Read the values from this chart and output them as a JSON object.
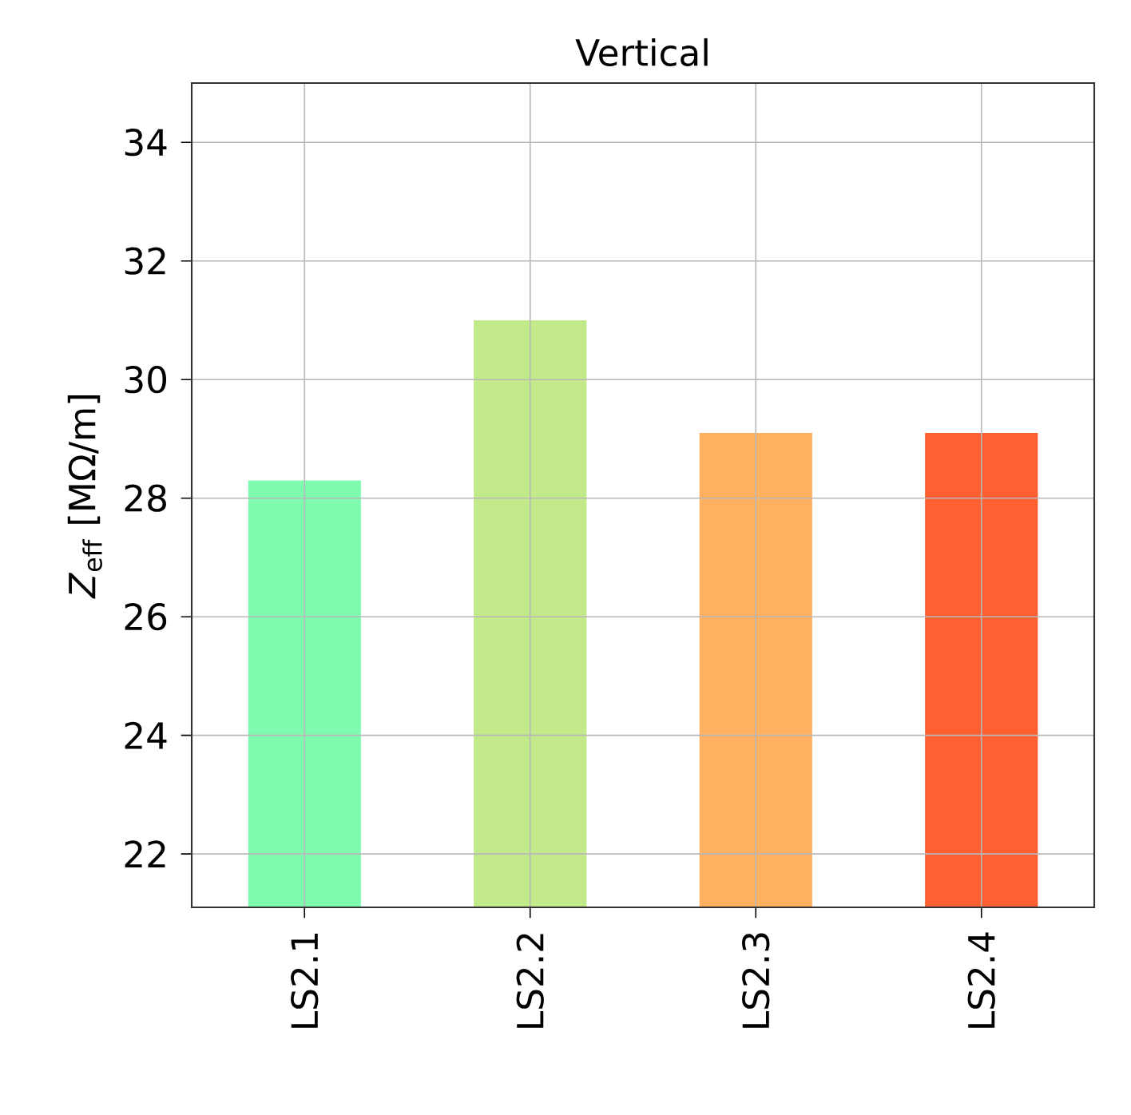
{
  "chart_data": {
    "type": "bar",
    "title": "Vertical",
    "ylabel": "*Z*$_{eff}$ [MΩ/m]",
    "categories": [
      "LS2.1",
      "LS2.2",
      "LS2.3",
      "LS2.4"
    ],
    "values": [
      28.3,
      31.0,
      29.1,
      29.1
    ],
    "colors": [
      "#7ffbb0",
      "#c2e98a",
      "#ffb161",
      "#ff5f31"
    ],
    "ylim": [
      21.1,
      35
    ],
    "yticks": [
      22,
      24,
      26,
      28,
      30,
      32,
      34
    ],
    "grid": true
  }
}
